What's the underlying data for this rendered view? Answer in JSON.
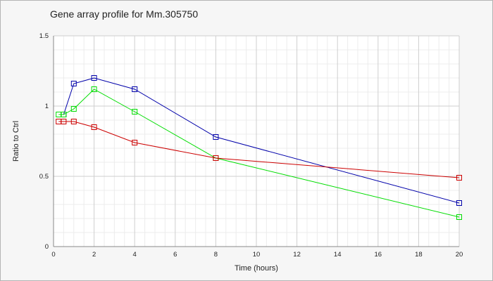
{
  "chart_data": {
    "type": "line",
    "title": "Gene array profile for Mm.305750",
    "xlabel": "Time (hours)",
    "ylabel": "Ratio to Ctrl",
    "xlim": [
      0,
      20
    ],
    "ylim": [
      0,
      1.5
    ],
    "x_ticks": [
      "0",
      "2",
      "4",
      "6",
      "8",
      "10",
      "12",
      "14",
      "16",
      "18",
      "20"
    ],
    "y_ticks": [
      "0",
      "0.5",
      "1",
      "1.5"
    ],
    "grid": true,
    "marker": "open-square",
    "series": [
      {
        "color": "#0000aa",
        "x": [
          0.5,
          1,
          2,
          4,
          8,
          20
        ],
        "y": [
          0.94,
          1.16,
          1.2,
          1.12,
          0.78,
          0.31
        ]
      },
      {
        "color": "#00dd00",
        "x": [
          0.25,
          0.5,
          1,
          2,
          4,
          8,
          20
        ],
        "y": [
          0.94,
          0.94,
          0.98,
          1.12,
          0.96,
          0.63,
          0.21
        ]
      },
      {
        "color": "#cc0000",
        "x": [
          0.25,
          0.5,
          1,
          2,
          4,
          8,
          20
        ],
        "y": [
          0.89,
          0.89,
          0.89,
          0.85,
          0.74,
          0.63,
          0.49
        ]
      }
    ]
  }
}
